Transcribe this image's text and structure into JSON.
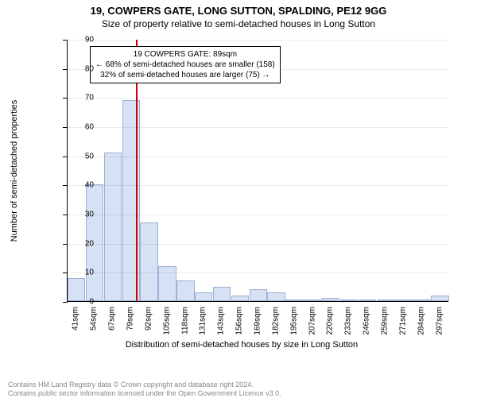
{
  "title_main": "19, COWPERS GATE, LONG SUTTON, SPALDING, PE12 9GG",
  "title_sub": "Size of property relative to semi-detached houses in Long Sutton",
  "chart": {
    "type": "histogram",
    "ylabel": "Number of semi-detached properties",
    "xlabel": "Distribution of semi-detached houses by size in Long Sutton",
    "ylim": [
      0,
      90
    ],
    "ytick_step": 10,
    "x_tick_labels": [
      "41sqm",
      "54sqm",
      "67sqm",
      "79sqm",
      "92sqm",
      "105sqm",
      "118sqm",
      "131sqm",
      "143sqm",
      "156sqm",
      "169sqm",
      "182sqm",
      "195sqm",
      "207sqm",
      "220sqm",
      "233sqm",
      "246sqm",
      "259sqm",
      "271sqm",
      "284sqm",
      "297sqm"
    ],
    "values": [
      8,
      40,
      51,
      69,
      27,
      12,
      7,
      3,
      5,
      2,
      4,
      3,
      0,
      0,
      1,
      0,
      0,
      0,
      0,
      0,
      2
    ],
    "bar_color": "#d7e1f4",
    "bar_border": "#9cb0d6",
    "background_color": "#ffffff",
    "axis_color": "#000000",
    "marker": {
      "position_index": 4,
      "color": "#cc0000"
    },
    "annotation": {
      "line1": "19 COWPERS GATE: 89sqm",
      "line2": "← 68% of semi-detached houses are smaller (158)",
      "line3": "32% of semi-detached houses are larger (75) →",
      "border_color": "#000000",
      "bg_color": "#ffffff",
      "fontsize": 10
    }
  },
  "footer": {
    "line1": "Contains HM Land Registry data © Crown copyright and database right 2024.",
    "line2": "Contains public sector information licensed under the Open Government Licence v3.0.",
    "color": "#888888"
  }
}
